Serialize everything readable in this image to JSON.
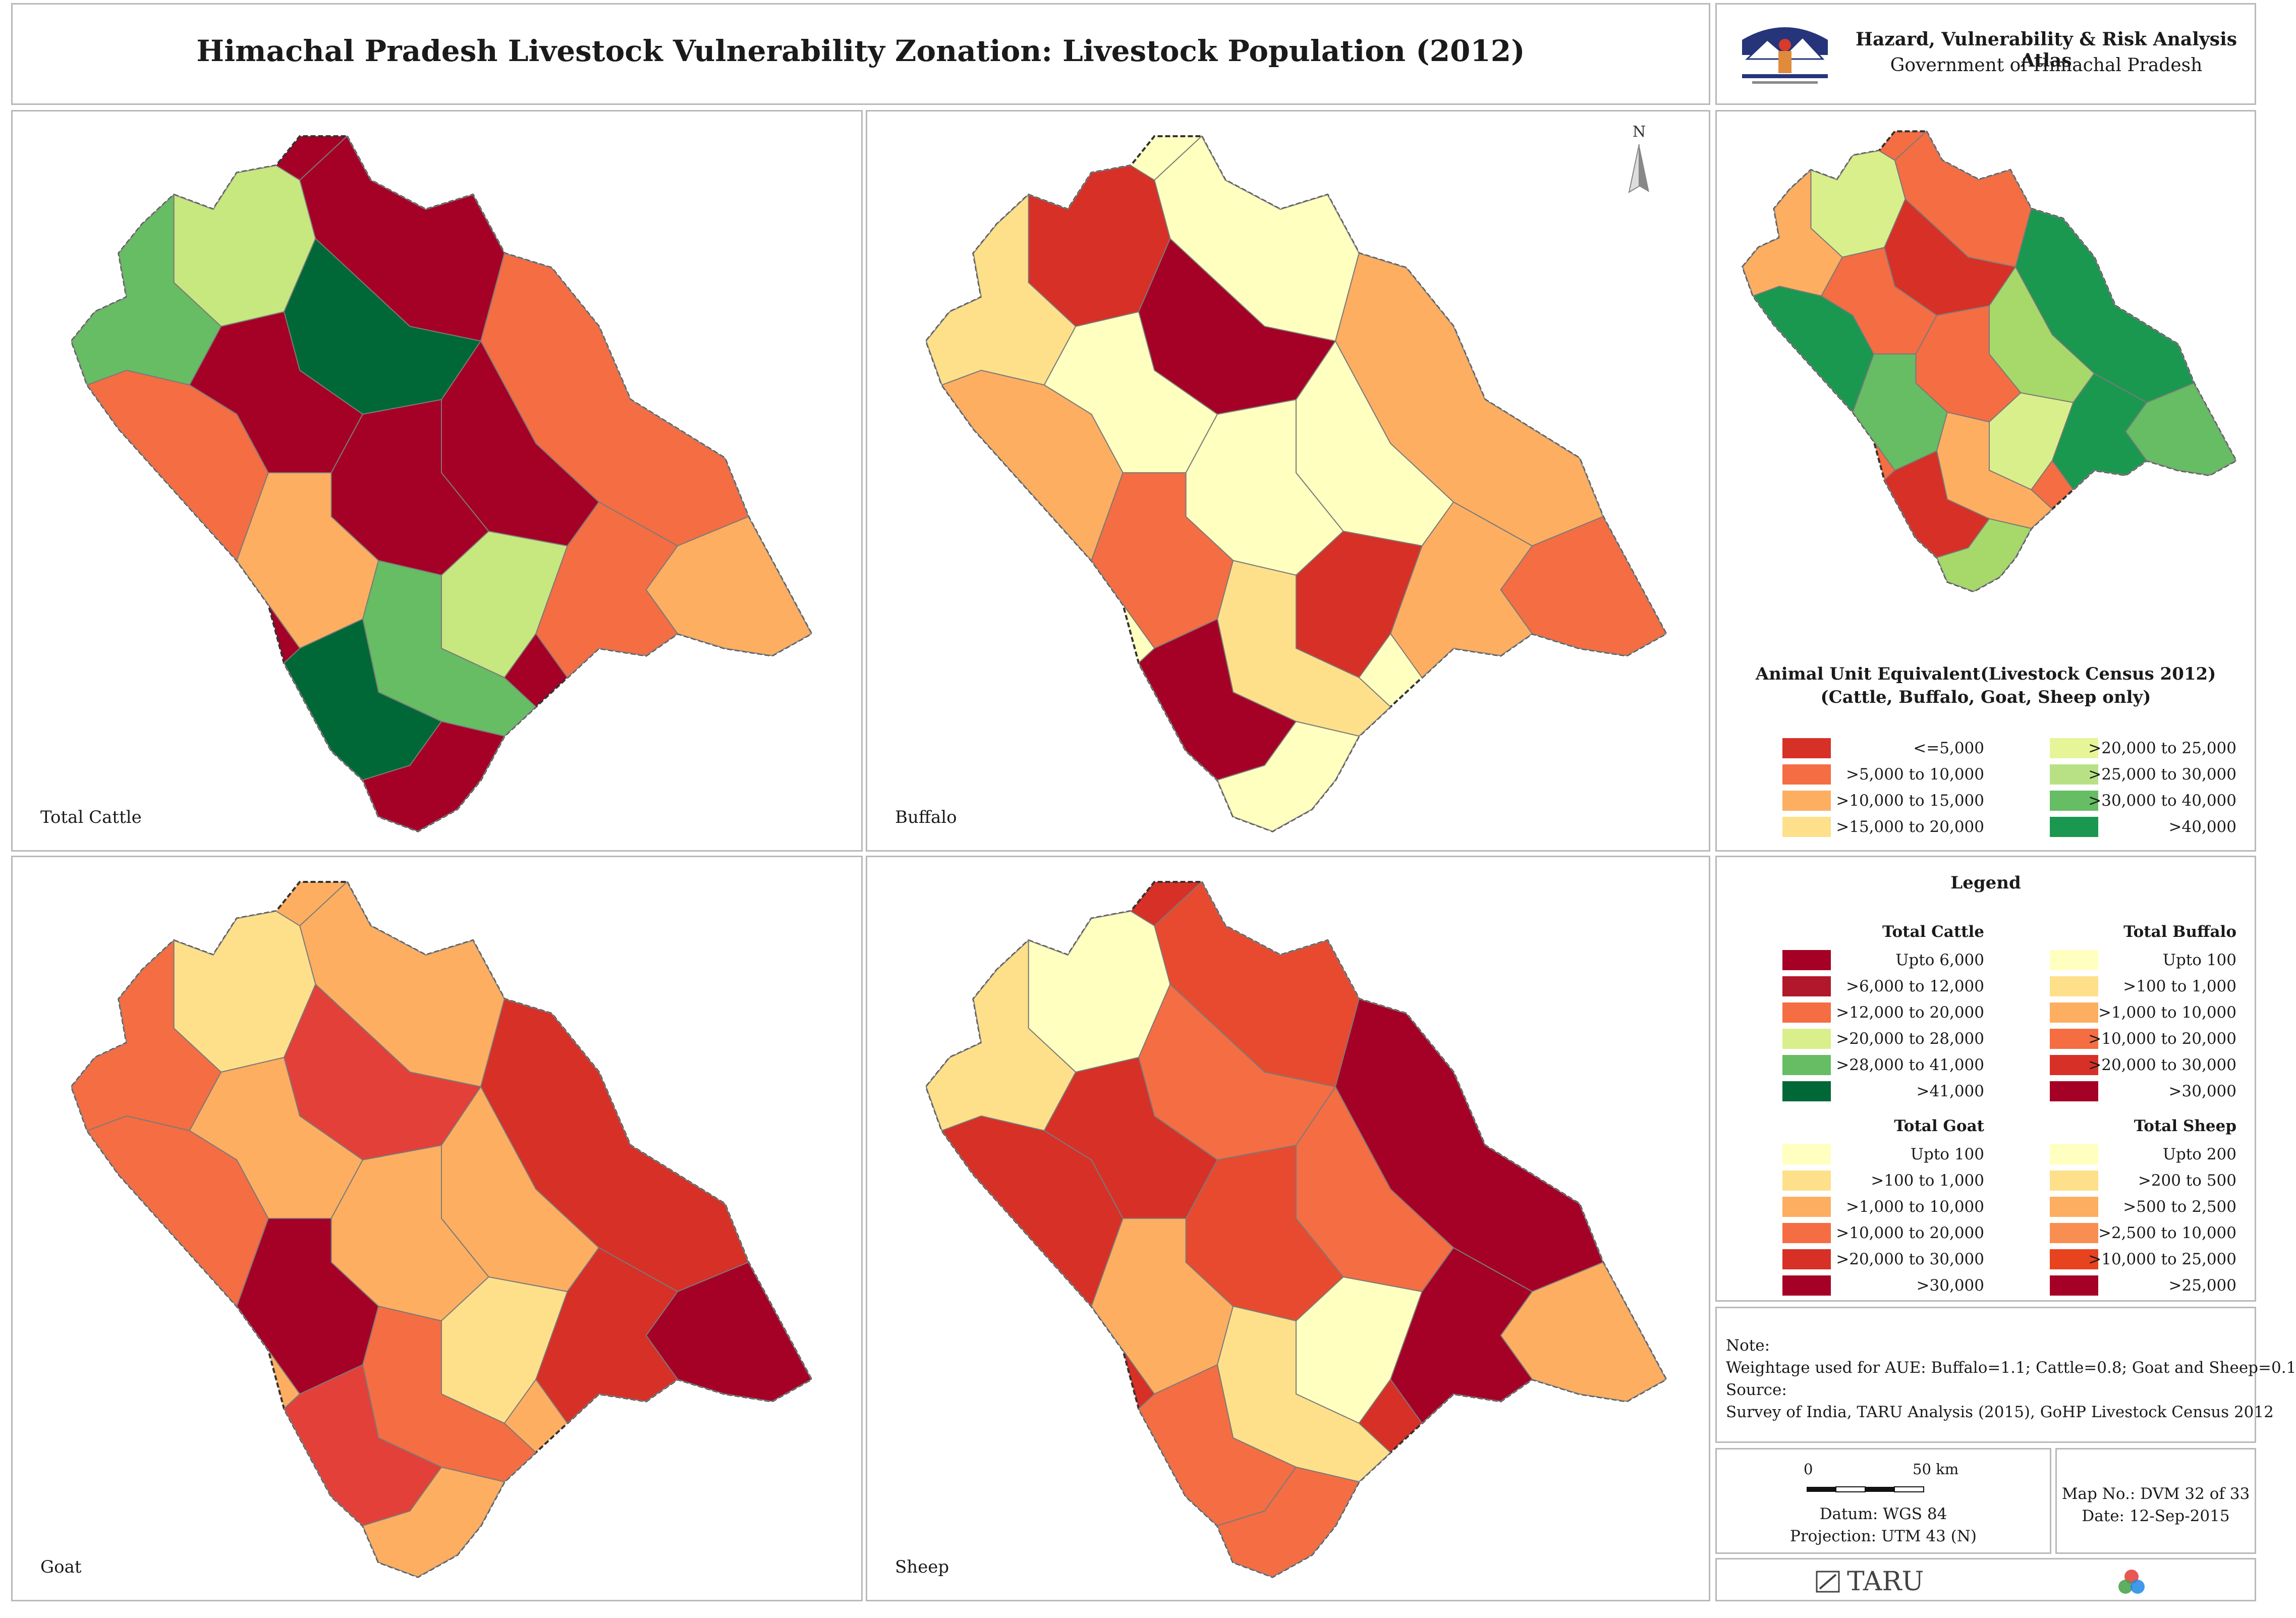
{
  "header": {
    "title": "Himachal Pradesh Livestock Vulnerability Zonation: Livestock Population (2012)",
    "atlas_title": "Hazard, Vulnerability & Risk Analysis Atlas",
    "atlas_subtitle": "Government of Himachal Pradesh"
  },
  "maps": [
    {
      "label": "Total Cattle",
      "palette": [
        "#a50026",
        "#a50026",
        "#f46d43",
        "#fdae61",
        "#c7e77f",
        "#66bd63",
        "#006837",
        "#a50026",
        "#f46d43"
      ]
    },
    {
      "label": "Buffalo",
      "palette": [
        "#ffffbf",
        "#ffffbf",
        "#fdae61",
        "#f46d43",
        "#d73027",
        "#fee08b",
        "#a50026",
        "#ffffbf",
        "#fdae61"
      ]
    },
    {
      "label": "Goat",
      "palette": [
        "#fdae61",
        "#fdae61",
        "#d73027",
        "#a50026",
        "#fee08b",
        "#f46d43",
        "#e3403a",
        "#fdae61",
        "#f46d43"
      ]
    },
    {
      "label": "Sheep",
      "palette": [
        "#d73027",
        "#e84a2f",
        "#a50026",
        "#fdae61",
        "#ffffbf",
        "#fee08b",
        "#f46d43",
        "#f46d43",
        "#d73027"
      ]
    }
  ],
  "overview_map": {
    "palette": [
      "#f46d43",
      "#f46d43",
      "#1a9850",
      "#66bd63",
      "#d9ef8b",
      "#fdae61",
      "#d73027",
      "#a6d96a",
      "#1a9850"
    ]
  },
  "north_label": "N",
  "aue_legend": {
    "title_line1": "Animal Unit Equivalent(Livestock Census 2012)",
    "title_line2": "(Cattle, Buffalo, Goat, Sheep only)",
    "left": [
      {
        "label": "<=5,000",
        "color": "#d73027"
      },
      {
        "label": ">5,000 to 10,000",
        "color": "#f46d43"
      },
      {
        "label": ">10,000 to 15,000",
        "color": "#fdae61"
      },
      {
        "label": ">15,000 to 20,000",
        "color": "#fee08b"
      }
    ],
    "right": [
      {
        "label": ">20,000 to 25,000",
        "color": "#e6f598"
      },
      {
        "label": ">25,000 to 30,000",
        "color": "#b8e186"
      },
      {
        "label": ">30,000 to 40,000",
        "color": "#66bd63"
      },
      {
        "label": ">40,000",
        "color": "#1a9850"
      }
    ]
  },
  "legend": {
    "title": "Legend",
    "groups": [
      {
        "heading": "Total Cattle",
        "items": [
          {
            "label": "Upto 6,000",
            "color": "#a50026"
          },
          {
            "label": ">6,000 to 12,000",
            "color": "#b2182b"
          },
          {
            "label": ">12,000 to 20,000",
            "color": "#f46d43"
          },
          {
            "label": ">20,000 to 28,000",
            "color": "#d9ef8b"
          },
          {
            "label": ">28,000 to 41,000",
            "color": "#66bd63"
          },
          {
            "label": ">41,000",
            "color": "#006837"
          }
        ]
      },
      {
        "heading": "Total Buffalo",
        "items": [
          {
            "label": "Upto 100",
            "color": "#ffffbf"
          },
          {
            "label": ">100 to 1,000",
            "color": "#fee08b"
          },
          {
            "label": ">1,000 to 10,000",
            "color": "#fdae61"
          },
          {
            "label": ">10,000 to 20,000",
            "color": "#f46d43"
          },
          {
            "label": ">20,000 to 30,000",
            "color": "#d73027"
          },
          {
            "label": ">30,000",
            "color": "#a50026"
          }
        ]
      },
      {
        "heading": "Total Goat",
        "items": [
          {
            "label": "Upto 100",
            "color": "#ffffbf"
          },
          {
            "label": ">100 to 1,000",
            "color": "#fee08b"
          },
          {
            "label": ">1,000 to 10,000",
            "color": "#fdae61"
          },
          {
            "label": ">10,000 to 20,000",
            "color": "#f46d43"
          },
          {
            "label": ">20,000 to 30,000",
            "color": "#d73027"
          },
          {
            "label": ">30,000",
            "color": "#a50026"
          }
        ]
      },
      {
        "heading": "Total Sheep",
        "items": [
          {
            "label": "Upto 200",
            "color": "#ffffbf"
          },
          {
            "label": ">200 to 500",
            "color": "#fee08b"
          },
          {
            "label": ">500 to 2,500",
            "color": "#fdae61"
          },
          {
            "label": ">2,500 to 10,000",
            "color": "#f98e52"
          },
          {
            "label": ">10,000 to 25,000",
            "color": "#e8431f"
          },
          {
            "label": ">25,000",
            "color": "#a50026"
          }
        ]
      }
    ]
  },
  "note": {
    "lines": [
      "Note:",
      " Weightage used for AUE:  Buffalo=1.1; Cattle=0.8; Goat and Sheep=0.1",
      "Source:",
      " Survey of India,  TARU Analysis (2015), GoHP Livestock Census 2012"
    ]
  },
  "scale": {
    "zero": "0",
    "distance": "50 km",
    "datum": "Datum: WGS 84",
    "projection": "Projection: UTM 43 (N)"
  },
  "map_info": {
    "map_no": "Map No.: DVM 32 of 33",
    "date": "Date: 12-Sep-2015"
  },
  "footer": {
    "org": "TARU"
  }
}
